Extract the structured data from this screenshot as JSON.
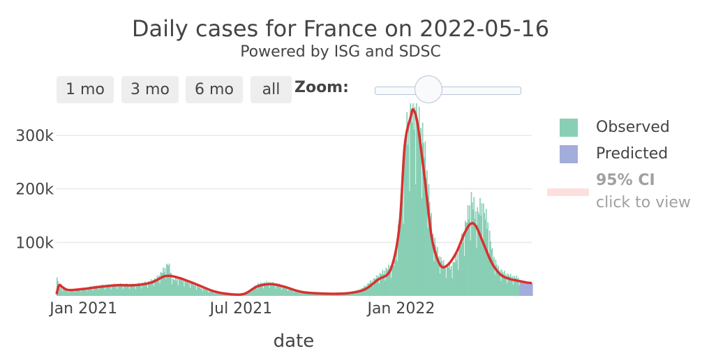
{
  "header": {
    "title": "Daily cases for France on 2022-05-16",
    "subtitle": "Powered by ISG and SDSC"
  },
  "range_buttons": [
    "1 mo",
    "3 mo",
    "6 mo",
    "all"
  ],
  "zoom": {
    "label": "Zoom:",
    "value": 0.38
  },
  "legend": {
    "observed": "Observed",
    "predicted": "Predicted",
    "ci_label": "95% CI",
    "ci_hint": "click to view"
  },
  "colors": {
    "observed": "#88cfb5",
    "predicted": "#a3addb",
    "fit_line": "#d93030",
    "ci": "#fde0dd",
    "grid": "#e6e9ee",
    "text": "#444444",
    "muted": "#a0a0a0"
  },
  "chart_data": {
    "type": "bar",
    "title": "Daily cases for France on 2022-05-16",
    "xlabel": "date",
    "ylabel": "",
    "x_start": "2020-12-01",
    "x_end": "2022-05-31",
    "ylim": [
      0,
      360000
    ],
    "yticks": [
      100000,
      200000,
      300000
    ],
    "ytick_labels": [
      "100k",
      "200k",
      "300k"
    ],
    "xticks": [
      {
        "date": "2021-01-01",
        "label": "Jan 2021"
      },
      {
        "date": "2021-07-01",
        "label": "Jul 2021"
      },
      {
        "date": "2022-01-01",
        "label": "Jan 2022"
      }
    ],
    "observed_knots": [
      [
        "2020-12-01",
        32000
      ],
      [
        "2020-12-05",
        15000
      ],
      [
        "2020-12-12",
        10000
      ],
      [
        "2020-12-20",
        12000
      ],
      [
        "2021-01-01",
        14000
      ],
      [
        "2021-01-20",
        19000
      ],
      [
        "2021-02-10",
        21000
      ],
      [
        "2021-03-01",
        21000
      ],
      [
        "2021-03-15",
        25000
      ],
      [
        "2021-03-25",
        32000
      ],
      [
        "2021-04-01",
        45000
      ],
      [
        "2021-04-08",
        60000
      ],
      [
        "2021-04-13",
        30000
      ],
      [
        "2021-04-20",
        33000
      ],
      [
        "2021-05-01",
        26000
      ],
      [
        "2021-05-15",
        15000
      ],
      [
        "2021-06-01",
        6000
      ],
      [
        "2021-06-20",
        2500
      ],
      [
        "2021-07-01",
        3500
      ],
      [
        "2021-07-10",
        10000
      ],
      [
        "2021-07-20",
        22000
      ],
      [
        "2021-08-01",
        25000
      ],
      [
        "2021-08-15",
        20000
      ],
      [
        "2021-09-01",
        10000
      ],
      [
        "2021-09-20",
        5000
      ],
      [
        "2021-10-15",
        4500
      ],
      [
        "2021-11-01",
        6000
      ],
      [
        "2021-11-15",
        12000
      ],
      [
        "2021-12-01",
        32000
      ],
      [
        "2021-12-15",
        50000
      ],
      [
        "2021-12-24",
        60000
      ],
      [
        "2021-12-29",
        140000
      ],
      [
        "2022-01-02",
        200000
      ],
      [
        "2022-01-06",
        300000
      ],
      [
        "2022-01-12",
        340000
      ],
      [
        "2022-01-17",
        348000
      ],
      [
        "2022-01-20",
        320000
      ],
      [
        "2022-01-25",
        300000
      ],
      [
        "2022-01-30",
        230000
      ],
      [
        "2022-02-05",
        120000
      ],
      [
        "2022-02-12",
        75000
      ],
      [
        "2022-02-20",
        55000
      ],
      [
        "2022-02-28",
        55000
      ],
      [
        "2022-03-08",
        85000
      ],
      [
        "2022-03-15",
        130000
      ],
      [
        "2022-03-22",
        180000
      ],
      [
        "2022-03-28",
        150000
      ],
      [
        "2022-04-03",
        170000
      ],
      [
        "2022-04-10",
        135000
      ],
      [
        "2022-04-15",
        80000
      ],
      [
        "2022-04-22",
        50000
      ],
      [
        "2022-05-01",
        40000
      ],
      [
        "2022-05-10",
        35000
      ],
      [
        "2022-05-16",
        33000
      ]
    ],
    "predicted": [
      {
        "date": "2022-05-17",
        "value": 28000
      },
      {
        "date": "2022-05-20",
        "value": 26000
      },
      {
        "date": "2022-05-25",
        "value": 25000
      },
      {
        "date": "2022-05-31",
        "value": 24000
      }
    ],
    "fit_line": [
      [
        "2020-12-01",
        3000
      ],
      [
        "2020-12-04",
        20000
      ],
      [
        "2020-12-08",
        16000
      ],
      [
        "2020-12-15",
        11000
      ],
      [
        "2021-01-01",
        13000
      ],
      [
        "2021-01-20",
        17000
      ],
      [
        "2021-02-10",
        20000
      ],
      [
        "2021-03-01",
        20000
      ],
      [
        "2021-03-20",
        25000
      ],
      [
        "2021-04-05",
        37000
      ],
      [
        "2021-04-20",
        34000
      ],
      [
        "2021-05-10",
        22000
      ],
      [
        "2021-06-01",
        8000
      ],
      [
        "2021-06-20",
        3000
      ],
      [
        "2021-07-05",
        4000
      ],
      [
        "2021-07-20",
        18000
      ],
      [
        "2021-08-05",
        22000
      ],
      [
        "2021-08-20",
        17000
      ],
      [
        "2021-09-10",
        7000
      ],
      [
        "2021-10-10",
        4000
      ],
      [
        "2021-11-01",
        5000
      ],
      [
        "2021-11-20",
        12000
      ],
      [
        "2021-12-05",
        30000
      ],
      [
        "2021-12-20",
        50000
      ],
      [
        "2021-12-30",
        130000
      ],
      [
        "2022-01-05",
        280000
      ],
      [
        "2022-01-12",
        335000
      ],
      [
        "2022-01-15",
        348000
      ],
      [
        "2022-01-20",
        320000
      ],
      [
        "2022-01-28",
        220000
      ],
      [
        "2022-02-05",
        110000
      ],
      [
        "2022-02-14",
        60000
      ],
      [
        "2022-02-22",
        56000
      ],
      [
        "2022-03-05",
        80000
      ],
      [
        "2022-03-15",
        118000
      ],
      [
        "2022-03-22",
        135000
      ],
      [
        "2022-03-28",
        130000
      ],
      [
        "2022-04-05",
        100000
      ],
      [
        "2022-04-15",
        62000
      ],
      [
        "2022-04-25",
        40000
      ],
      [
        "2022-05-05",
        32000
      ],
      [
        "2022-05-16",
        28000
      ],
      [
        "2022-05-25",
        25000
      ],
      [
        "2022-05-31",
        24000
      ]
    ]
  }
}
